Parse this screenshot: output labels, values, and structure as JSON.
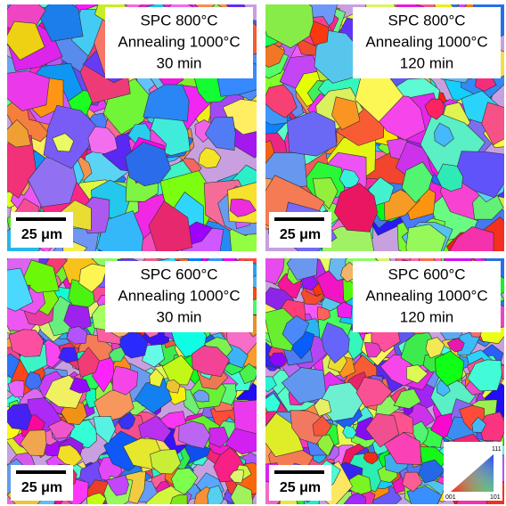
{
  "panels": [
    {
      "lines": [
        "SPC 800°C",
        "Annealing 1000°C",
        "30 min"
      ],
      "scale": "25 μm"
    },
    {
      "lines": [
        "SPC 800°C",
        "Annealing 1000°C",
        "120 min"
      ],
      "scale": "25 μm"
    },
    {
      "lines": [
        "SPC 600°C",
        "Annealing 1000°C",
        "30 min"
      ],
      "scale": "25 μm"
    },
    {
      "lines": [
        "SPC 600°C",
        "Annealing 1000°C",
        "120 min"
      ],
      "scale": "25 μm"
    }
  ],
  "legend": {
    "top": "111",
    "left": "001",
    "right": "101"
  }
}
